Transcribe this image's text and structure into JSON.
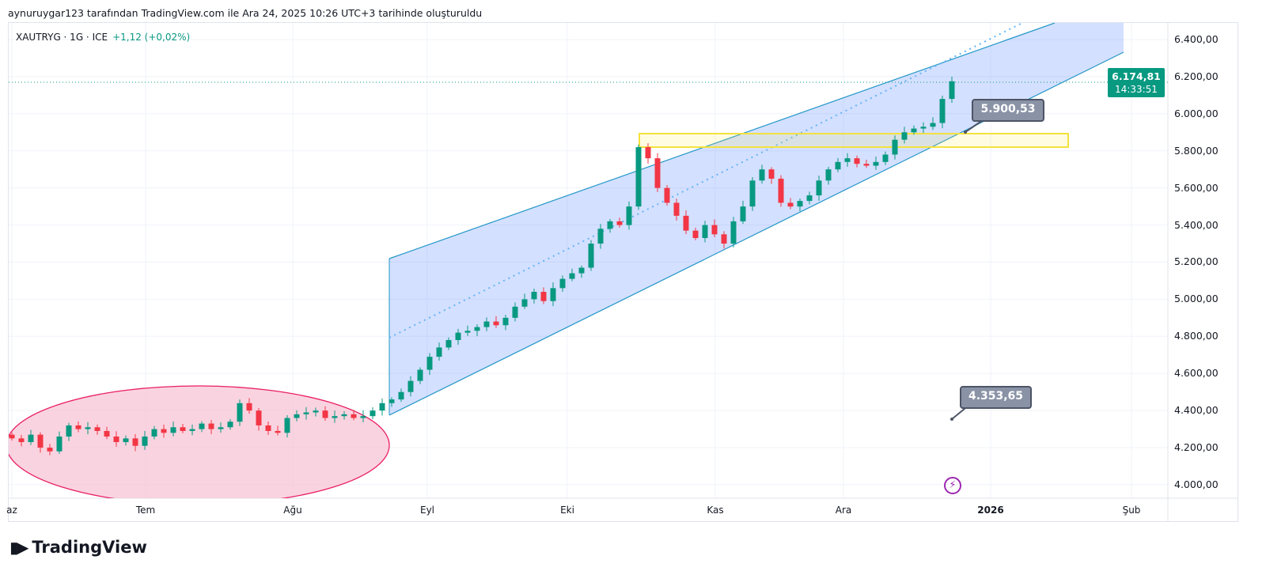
{
  "header": {
    "created_by": "aynuruygar123 tarafından TradingView.com ile Ara 24, 2025 10:26 UTC+3 tarihinde oluşturuldu"
  },
  "legend": {
    "symbol": "XAUTRYG · 1G · ICE",
    "change": "+1,12 (+0,02%)"
  },
  "price_axis": [
    "6.400,00",
    "6.200,00",
    "6.000,00",
    "5.800,00",
    "5.600,00",
    "5.400,00",
    "5.200,00",
    "5.000,00",
    "4.800,00",
    "4.600,00",
    "4.400,00",
    "4.200,00",
    "4.000,00"
  ],
  "last_price": {
    "value": "6.174,81",
    "countdown": "14:33:51",
    "color": "#089981"
  },
  "time_axis": [
    "az",
    "Tem",
    "Ağu",
    "Eyl",
    "Eki",
    "Kas",
    "Ara",
    "2026",
    "Şub"
  ],
  "callouts": {
    "upper": "5.900,53",
    "lower": "4.353,65"
  },
  "colors": {
    "up": "#089981",
    "down": "#f23645",
    "channel": "#2962ff",
    "ellipse": "#f48fb1",
    "zone": "#ffeb3b"
  },
  "closes": [
    4250,
    4230,
    4270,
    4200,
    4180,
    4260,
    4320,
    4300,
    4310,
    4290,
    4260,
    4230,
    4250,
    4210,
    4260,
    4300,
    4280,
    4310,
    4290,
    4300,
    4330,
    4300,
    4310,
    4340,
    4440,
    4400,
    4320,
    4290,
    4280,
    4360,
    4380,
    4390,
    4400,
    4360,
    4370,
    4380,
    4360,
    4370,
    4400,
    4440,
    4460,
    4500,
    4560,
    4620,
    4690,
    4740,
    4780,
    4820,
    4830,
    4850,
    4880,
    4860,
    4900,
    4960,
    5000,
    5040,
    4990,
    5060,
    5110,
    5140,
    5170,
    5300,
    5380,
    5420,
    5400,
    5500,
    5820,
    5760,
    5600,
    5520,
    5450,
    5370,
    5330,
    5400,
    5350,
    5300,
    5420,
    5500,
    5640,
    5700,
    5650,
    5520,
    5500,
    5530,
    5560,
    5640,
    5700,
    5740,
    5760,
    5730,
    5720,
    5740,
    5780,
    5860,
    5900,
    5920,
    5930,
    5950,
    6080,
    6175
  ],
  "logo": "TradingView"
}
